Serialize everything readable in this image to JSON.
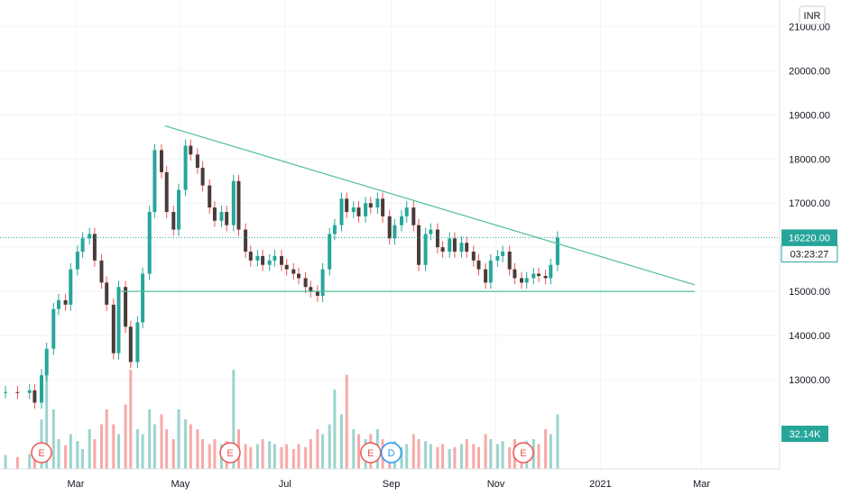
{
  "chart_data": {
    "type": "candlestick",
    "currency": "INR",
    "price_last": "16220.00",
    "countdown": "03:23:27",
    "volume_last": "32.14K",
    "colors": {
      "up": "#26a69a",
      "down": "#ef5350",
      "candle_body": "#4a3b3b",
      "volume_up": "#9bd4cd",
      "volume_down": "#f7a9a7",
      "trendline": "#4fbf95",
      "price_badge": "#26a69a",
      "event_earnings": "#ef5350",
      "event_dividend": "#2196f3"
    },
    "y_axis": {
      "min": 12000,
      "max": 21600,
      "ticks": [
        "21000.00",
        "20000.00",
        "19000.00",
        "18000.00",
        "17000.00",
        "16000.00",
        "15000.00",
        "14000.00",
        "13000.00"
      ]
    },
    "x_axis": {
      "ticks": [
        "Mar",
        "May",
        "Jul",
        "Sep",
        "Nov",
        "2021",
        "Mar"
      ]
    },
    "series": [
      {
        "x": "2020-01-20",
        "c": 12720
      },
      {
        "x": "2020-01-27",
        "c": 12700
      },
      {
        "x": "2020-02-03",
        "c": 12760
      },
      {
        "x": "2020-02-06",
        "c": 12480
      },
      {
        "x": "2020-02-10",
        "c": 13100
      },
      {
        "x": "2020-02-13",
        "c": 13700
      },
      {
        "x": "2020-02-17",
        "c": 14600
      },
      {
        "x": "2020-02-20",
        "c": 14800
      },
      {
        "x": "2020-02-24",
        "c": 14700
      },
      {
        "x": "2020-02-27",
        "c": 15500
      },
      {
        "x": "2020-03-02",
        "c": 15900
      },
      {
        "x": "2020-03-05",
        "c": 16200
      },
      {
        "x": "2020-03-09",
        "c": 16300
      },
      {
        "x": "2020-03-12",
        "c": 15700
      },
      {
        "x": "2020-03-16",
        "c": 15200
      },
      {
        "x": "2020-03-19",
        "c": 14700
      },
      {
        "x": "2020-03-23",
        "c": 13600
      },
      {
        "x": "2020-03-26",
        "c": 15100
      },
      {
        "x": "2020-03-30",
        "c": 14200
      },
      {
        "x": "2020-04-02",
        "c": 13400
      },
      {
        "x": "2020-04-06",
        "c": 14300
      },
      {
        "x": "2020-04-09",
        "c": 15400
      },
      {
        "x": "2020-04-13",
        "c": 16800
      },
      {
        "x": "2020-04-16",
        "c": 18200
      },
      {
        "x": "2020-04-20",
        "c": 17700
      },
      {
        "x": "2020-04-23",
        "c": 16800
      },
      {
        "x": "2020-04-27",
        "c": 16400
      },
      {
        "x": "2020-04-30",
        "c": 17300
      },
      {
        "x": "2020-05-04",
        "c": 18300
      },
      {
        "x": "2020-05-07",
        "c": 18100
      },
      {
        "x": "2020-05-11",
        "c": 17800
      },
      {
        "x": "2020-05-14",
        "c": 17400
      },
      {
        "x": "2020-05-18",
        "c": 16900
      },
      {
        "x": "2020-05-21",
        "c": 16600
      },
      {
        "x": "2020-05-25",
        "c": 16800
      },
      {
        "x": "2020-05-28",
        "c": 16500
      },
      {
        "x": "2020-06-01",
        "c": 17500
      },
      {
        "x": "2020-06-04",
        "c": 16400
      },
      {
        "x": "2020-06-08",
        "c": 15900
      },
      {
        "x": "2020-06-11",
        "c": 15700
      },
      {
        "x": "2020-06-15",
        "c": 15800
      },
      {
        "x": "2020-06-18",
        "c": 15600
      },
      {
        "x": "2020-06-22",
        "c": 15700
      },
      {
        "x": "2020-06-25",
        "c": 15800
      },
      {
        "x": "2020-06-29",
        "c": 15600
      },
      {
        "x": "2020-07-02",
        "c": 15500
      },
      {
        "x": "2020-07-06",
        "c": 15400
      },
      {
        "x": "2020-07-09",
        "c": 15300
      },
      {
        "x": "2020-07-13",
        "c": 15100
      },
      {
        "x": "2020-07-16",
        "c": 15000
      },
      {
        "x": "2020-07-20",
        "c": 14900
      },
      {
        "x": "2020-07-23",
        "c": 15500
      },
      {
        "x": "2020-07-27",
        "c": 16300
      },
      {
        "x": "2020-07-30",
        "c": 16500
      },
      {
        "x": "2020-08-03",
        "c": 17100
      },
      {
        "x": "2020-08-06",
        "c": 16800
      },
      {
        "x": "2020-08-10",
        "c": 16900
      },
      {
        "x": "2020-08-13",
        "c": 16700
      },
      {
        "x": "2020-08-17",
        "c": 17000
      },
      {
        "x": "2020-08-20",
        "c": 16900
      },
      {
        "x": "2020-08-24",
        "c": 17100
      },
      {
        "x": "2020-08-27",
        "c": 16700
      },
      {
        "x": "2020-08-31",
        "c": 16200
      },
      {
        "x": "2020-09-03",
        "c": 16500
      },
      {
        "x": "2020-09-07",
        "c": 16700
      },
      {
        "x": "2020-09-10",
        "c": 16900
      },
      {
        "x": "2020-09-14",
        "c": 16500
      },
      {
        "x": "2020-09-17",
        "c": 15600
      },
      {
        "x": "2020-09-21",
        "c": 16300
      },
      {
        "x": "2020-09-24",
        "c": 16400
      },
      {
        "x": "2020-09-28",
        "c": 16000
      },
      {
        "x": "2020-10-01",
        "c": 15900
      },
      {
        "x": "2020-10-05",
        "c": 16200
      },
      {
        "x": "2020-10-08",
        "c": 15900
      },
      {
        "x": "2020-10-12",
        "c": 16100
      },
      {
        "x": "2020-10-15",
        "c": 15900
      },
      {
        "x": "2020-10-19",
        "c": 15700
      },
      {
        "x": "2020-10-22",
        "c": 15500
      },
      {
        "x": "2020-10-26",
        "c": 15200
      },
      {
        "x": "2020-10-29",
        "c": 15700
      },
      {
        "x": "2020-11-02",
        "c": 15800
      },
      {
        "x": "2020-11-05",
        "c": 15900
      },
      {
        "x": "2020-11-09",
        "c": 15500
      },
      {
        "x": "2020-11-12",
        "c": 15300
      },
      {
        "x": "2020-11-16",
        "c": 15200
      },
      {
        "x": "2020-11-19",
        "c": 15300
      },
      {
        "x": "2020-11-23",
        "c": 15400
      },
      {
        "x": "2020-11-26",
        "c": 15350
      },
      {
        "x": "2020-11-30",
        "c": 15300
      },
      {
        "x": "2020-12-03",
        "c": 15600
      },
      {
        "x": "2020-12-07",
        "c": 16220
      }
    ],
    "volume": [
      {
        "x": "2020-01-20",
        "v": 14
      },
      {
        "x": "2020-01-27",
        "v": 12
      },
      {
        "x": "2020-02-03",
        "v": 15
      },
      {
        "x": "2020-02-06",
        "v": 18
      },
      {
        "x": "2020-02-10",
        "v": 50
      },
      {
        "x": "2020-02-13",
        "v": 100
      },
      {
        "x": "2020-02-17",
        "v": 60
      },
      {
        "x": "2020-02-20",
        "v": 30
      },
      {
        "x": "2020-02-24",
        "v": 24
      },
      {
        "x": "2020-02-27",
        "v": 35
      },
      {
        "x": "2020-03-02",
        "v": 28
      },
      {
        "x": "2020-03-05",
        "v": 20
      },
      {
        "x": "2020-03-09",
        "v": 40
      },
      {
        "x": "2020-03-12",
        "v": 30
      },
      {
        "x": "2020-03-16",
        "v": 45
      },
      {
        "x": "2020-03-19",
        "v": 60
      },
      {
        "x": "2020-03-23",
        "v": 45
      },
      {
        "x": "2020-03-26",
        "v": 35
      },
      {
        "x": "2020-03-30",
        "v": 65
      },
      {
        "x": "2020-04-02",
        "v": 100
      },
      {
        "x": "2020-04-06",
        "v": 40
      },
      {
        "x": "2020-04-09",
        "v": 35
      },
      {
        "x": "2020-04-13",
        "v": 60
      },
      {
        "x": "2020-04-16",
        "v": 45
      },
      {
        "x": "2020-04-20",
        "v": 55
      },
      {
        "x": "2020-04-23",
        "v": 40
      },
      {
        "x": "2020-04-27",
        "v": 30
      },
      {
        "x": "2020-04-30",
        "v": 60
      },
      {
        "x": "2020-05-04",
        "v": 50
      },
      {
        "x": "2020-05-07",
        "v": 45
      },
      {
        "x": "2020-05-11",
        "v": 40
      },
      {
        "x": "2020-05-14",
        "v": 30
      },
      {
        "x": "2020-05-18",
        "v": 25
      },
      {
        "x": "2020-05-21",
        "v": 30
      },
      {
        "x": "2020-05-25",
        "v": 25
      },
      {
        "x": "2020-05-28",
        "v": 28
      },
      {
        "x": "2020-06-01",
        "v": 100
      },
      {
        "x": "2020-06-04",
        "v": 40
      },
      {
        "x": "2020-06-08",
        "v": 25
      },
      {
        "x": "2020-06-11",
        "v": 22
      },
      {
        "x": "2020-06-15",
        "v": 25
      },
      {
        "x": "2020-06-18",
        "v": 30
      },
      {
        "x": "2020-06-22",
        "v": 28
      },
      {
        "x": "2020-06-25",
        "v": 25
      },
      {
        "x": "2020-06-29",
        "v": 22
      },
      {
        "x": "2020-07-02",
        "v": 25
      },
      {
        "x": "2020-07-06",
        "v": 20
      },
      {
        "x": "2020-07-09",
        "v": 25
      },
      {
        "x": "2020-07-13",
        "v": 22
      },
      {
        "x": "2020-07-16",
        "v": 30
      },
      {
        "x": "2020-07-20",
        "v": 40
      },
      {
        "x": "2020-07-23",
        "v": 35
      },
      {
        "x": "2020-07-27",
        "v": 45
      },
      {
        "x": "2020-07-30",
        "v": 80
      },
      {
        "x": "2020-08-03",
        "v": 55
      },
      {
        "x": "2020-08-06",
        "v": 95
      },
      {
        "x": "2020-08-10",
        "v": 40
      },
      {
        "x": "2020-08-13",
        "v": 35
      },
      {
        "x": "2020-08-17",
        "v": 30
      },
      {
        "x": "2020-08-20",
        "v": 35
      },
      {
        "x": "2020-08-24",
        "v": 40
      },
      {
        "x": "2020-08-27",
        "v": 30
      },
      {
        "x": "2020-08-31",
        "v": 25
      },
      {
        "x": "2020-09-03",
        "v": 28
      },
      {
        "x": "2020-09-07",
        "v": 22
      },
      {
        "x": "2020-09-10",
        "v": 25
      },
      {
        "x": "2020-09-14",
        "v": 35
      },
      {
        "x": "2020-09-17",
        "v": 30
      },
      {
        "x": "2020-09-21",
        "v": 28
      },
      {
        "x": "2020-09-24",
        "v": 25
      },
      {
        "x": "2020-09-28",
        "v": 22
      },
      {
        "x": "2020-10-01",
        "v": 25
      },
      {
        "x": "2020-10-05",
        "v": 20
      },
      {
        "x": "2020-10-08",
        "v": 22
      },
      {
        "x": "2020-10-12",
        "v": 25
      },
      {
        "x": "2020-10-15",
        "v": 30
      },
      {
        "x": "2020-10-19",
        "v": 25
      },
      {
        "x": "2020-10-22",
        "v": 22
      },
      {
        "x": "2020-10-26",
        "v": 35
      },
      {
        "x": "2020-10-29",
        "v": 30
      },
      {
        "x": "2020-11-02",
        "v": 25
      },
      {
        "x": "2020-11-05",
        "v": 28
      },
      {
        "x": "2020-11-09",
        "v": 22
      },
      {
        "x": "2020-11-12",
        "v": 30
      },
      {
        "x": "2020-11-16",
        "v": 25
      },
      {
        "x": "2020-11-19",
        "v": 28
      },
      {
        "x": "2020-11-23",
        "v": 30
      },
      {
        "x": "2020-11-26",
        "v": 25
      },
      {
        "x": "2020-11-30",
        "v": 40
      },
      {
        "x": "2020-12-03",
        "v": 35
      },
      {
        "x": "2020-12-07",
        "v": 55
      }
    ],
    "trendlines": [
      {
        "name": "descending-resistance",
        "x1": "2020-04-22",
        "y1": 18750,
        "x2": "2021-02-25",
        "y2": 15150
      },
      {
        "name": "horizontal-support",
        "x1": "2020-03-27",
        "y1": 15000,
        "x2": "2021-02-25",
        "y2": 15000
      }
    ],
    "events": [
      {
        "x": "2020-02-10",
        "label": "E"
      },
      {
        "x": "2020-05-30",
        "label": "E"
      },
      {
        "x": "2020-08-20",
        "label": "E"
      },
      {
        "x": "2020-09-01",
        "label": "D"
      },
      {
        "x": "2020-11-17",
        "label": "E"
      }
    ]
  }
}
